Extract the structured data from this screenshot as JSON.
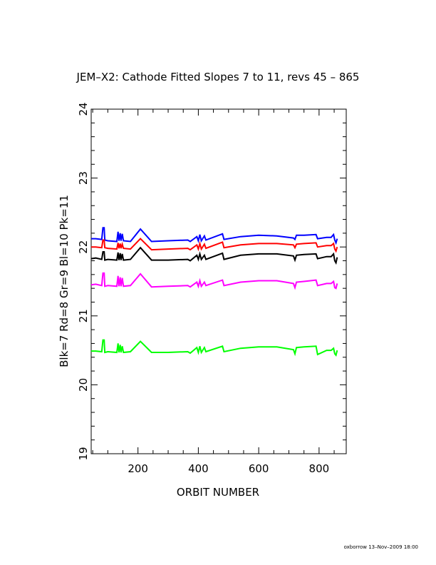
{
  "chart_data": {
    "type": "line",
    "title": "JEM–X2: Cathode Fitted Slopes 7 to 11, revs 45 – 865",
    "xlabel": "ORBIT NUMBER",
    "ylabel": "Blk=7 Rd=8 Gr=9 Bl=10 Pk=11",
    "xlim": [
      45,
      890
    ],
    "ylim": [
      19,
      24
    ],
    "x_ticks": [
      200,
      400,
      600,
      800
    ],
    "x_tick_labels": [
      "200",
      "400",
      "600",
      "800"
    ],
    "y_ticks": [
      19,
      20,
      21,
      22,
      23,
      24
    ],
    "y_tick_labels": [
      "19",
      "20",
      "21",
      "22",
      "23",
      "24"
    ],
    "grid": false,
    "legend": "none",
    "credit": "oxborrow 13–Nov–2009 18:00",
    "series": [
      {
        "color": "#0000ff",
        "points": [
          [
            45,
            22.12
          ],
          [
            60,
            22.12
          ],
          [
            80,
            22.11
          ],
          [
            84,
            22.28
          ],
          [
            88,
            22.28
          ],
          [
            90,
            22.1
          ],
          [
            100,
            22.09
          ],
          [
            130,
            22.08
          ],
          [
            134,
            22.22
          ],
          [
            137,
            22.09
          ],
          [
            141,
            22.2
          ],
          [
            144,
            22.09
          ],
          [
            148,
            22.19
          ],
          [
            152,
            22.09
          ],
          [
            175,
            22.08
          ],
          [
            208,
            22.26
          ],
          [
            245,
            22.08
          ],
          [
            300,
            22.09
          ],
          [
            365,
            22.1
          ],
          [
            373,
            22.08
          ],
          [
            395,
            22.15
          ],
          [
            400,
            22.09
          ],
          [
            405,
            22.18
          ],
          [
            410,
            22.09
          ],
          [
            420,
            22.16
          ],
          [
            425,
            22.1
          ],
          [
            480,
            22.19
          ],
          [
            485,
            22.11
          ],
          [
            540,
            22.15
          ],
          [
            600,
            22.17
          ],
          [
            660,
            22.16
          ],
          [
            715,
            22.13
          ],
          [
            720,
            22.11
          ],
          [
            725,
            22.17
          ],
          [
            750,
            22.17
          ],
          [
            790,
            22.18
          ],
          [
            795,
            22.12
          ],
          [
            825,
            22.14
          ],
          [
            840,
            22.14
          ],
          [
            848,
            22.18
          ],
          [
            852,
            22.1
          ],
          [
            856,
            22.06
          ],
          [
            860,
            22.12
          ]
        ]
      },
      {
        "color": "#ff0000",
        "points": [
          [
            45,
            22.0
          ],
          [
            60,
            22.0
          ],
          [
            80,
            21.99
          ],
          [
            84,
            22.1
          ],
          [
            88,
            22.1
          ],
          [
            90,
            21.99
          ],
          [
            100,
            21.98
          ],
          [
            130,
            21.97
          ],
          [
            134,
            22.06
          ],
          [
            137,
            21.98
          ],
          [
            141,
            22.05
          ],
          [
            144,
            21.98
          ],
          [
            148,
            22.04
          ],
          [
            152,
            21.98
          ],
          [
            175,
            21.97
          ],
          [
            208,
            22.12
          ],
          [
            245,
            21.96
          ],
          [
            300,
            21.97
          ],
          [
            365,
            21.98
          ],
          [
            373,
            21.96
          ],
          [
            395,
            22.03
          ],
          [
            400,
            21.97
          ],
          [
            405,
            22.05
          ],
          [
            410,
            21.97
          ],
          [
            420,
            22.04
          ],
          [
            425,
            21.98
          ],
          [
            480,
            22.07
          ],
          [
            485,
            21.99
          ],
          [
            540,
            22.03
          ],
          [
            600,
            22.05
          ],
          [
            660,
            22.05
          ],
          [
            715,
            22.03
          ],
          [
            720,
            21.99
          ],
          [
            725,
            22.04
          ],
          [
            750,
            22.05
          ],
          [
            790,
            22.06
          ],
          [
            795,
            22.0
          ],
          [
            825,
            22.02
          ],
          [
            840,
            22.02
          ],
          [
            848,
            22.05
          ],
          [
            852,
            21.97
          ],
          [
            856,
            21.94
          ],
          [
            860,
            22.0
          ]
        ]
      },
      {
        "color": "#000000",
        "points": [
          [
            45,
            21.83
          ],
          [
            60,
            21.84
          ],
          [
            80,
            21.82
          ],
          [
            84,
            21.93
          ],
          [
            88,
            21.93
          ],
          [
            90,
            21.81
          ],
          [
            100,
            21.82
          ],
          [
            130,
            21.81
          ],
          [
            134,
            21.92
          ],
          [
            137,
            21.81
          ],
          [
            141,
            21.91
          ],
          [
            144,
            21.81
          ],
          [
            148,
            21.9
          ],
          [
            152,
            21.81
          ],
          [
            175,
            21.82
          ],
          [
            208,
            21.99
          ],
          [
            245,
            21.81
          ],
          [
            300,
            21.81
          ],
          [
            365,
            21.82
          ],
          [
            373,
            21.8
          ],
          [
            395,
            21.88
          ],
          [
            400,
            21.82
          ],
          [
            405,
            21.9
          ],
          [
            410,
            21.82
          ],
          [
            420,
            21.88
          ],
          [
            425,
            21.82
          ],
          [
            480,
            21.91
          ],
          [
            485,
            21.82
          ],
          [
            540,
            21.88
          ],
          [
            600,
            21.9
          ],
          [
            660,
            21.9
          ],
          [
            715,
            21.87
          ],
          [
            720,
            21.81
          ],
          [
            725,
            21.88
          ],
          [
            750,
            21.89
          ],
          [
            790,
            21.9
          ],
          [
            795,
            21.83
          ],
          [
            825,
            21.86
          ],
          [
            840,
            21.86
          ],
          [
            848,
            21.9
          ],
          [
            852,
            21.8
          ],
          [
            856,
            21.77
          ],
          [
            860,
            21.85
          ]
        ]
      },
      {
        "color": "#ff00ff",
        "points": [
          [
            45,
            21.45
          ],
          [
            60,
            21.46
          ],
          [
            80,
            21.44
          ],
          [
            84,
            21.62
          ],
          [
            88,
            21.62
          ],
          [
            90,
            21.43
          ],
          [
            100,
            21.44
          ],
          [
            130,
            21.43
          ],
          [
            134,
            21.58
          ],
          [
            137,
            21.43
          ],
          [
            141,
            21.56
          ],
          [
            144,
            21.43
          ],
          [
            148,
            21.55
          ],
          [
            152,
            21.43
          ],
          [
            175,
            21.44
          ],
          [
            208,
            21.61
          ],
          [
            245,
            21.42
          ],
          [
            300,
            21.43
          ],
          [
            365,
            21.44
          ],
          [
            373,
            21.42
          ],
          [
            395,
            21.49
          ],
          [
            400,
            21.43
          ],
          [
            405,
            21.51
          ],
          [
            410,
            21.43
          ],
          [
            420,
            21.49
          ],
          [
            425,
            21.44
          ],
          [
            480,
            21.52
          ],
          [
            485,
            21.44
          ],
          [
            540,
            21.49
          ],
          [
            600,
            21.51
          ],
          [
            660,
            21.51
          ],
          [
            715,
            21.47
          ],
          [
            720,
            21.41
          ],
          [
            725,
            21.49
          ],
          [
            750,
            21.5
          ],
          [
            790,
            21.52
          ],
          [
            795,
            21.44
          ],
          [
            825,
            21.47
          ],
          [
            840,
            21.47
          ],
          [
            848,
            21.5
          ],
          [
            852,
            21.41
          ],
          [
            856,
            21.4
          ],
          [
            860,
            21.47
          ]
        ]
      },
      {
        "color": "#00ff00",
        "points": [
          [
            45,
            20.49
          ],
          [
            60,
            20.49
          ],
          [
            80,
            20.48
          ],
          [
            84,
            20.65
          ],
          [
            88,
            20.65
          ],
          [
            90,
            20.47
          ],
          [
            100,
            20.48
          ],
          [
            130,
            20.47
          ],
          [
            134,
            20.6
          ],
          [
            137,
            20.47
          ],
          [
            141,
            20.58
          ],
          [
            144,
            20.47
          ],
          [
            148,
            20.56
          ],
          [
            152,
            20.47
          ],
          [
            175,
            20.48
          ],
          [
            208,
            20.63
          ],
          [
            245,
            20.47
          ],
          [
            300,
            20.47
          ],
          [
            365,
            20.48
          ],
          [
            373,
            20.46
          ],
          [
            395,
            20.54
          ],
          [
            400,
            20.47
          ],
          [
            405,
            20.56
          ],
          [
            410,
            20.47
          ],
          [
            420,
            20.54
          ],
          [
            425,
            20.48
          ],
          [
            480,
            20.56
          ],
          [
            485,
            20.48
          ],
          [
            540,
            20.53
          ],
          [
            600,
            20.55
          ],
          [
            660,
            20.55
          ],
          [
            715,
            20.51
          ],
          [
            720,
            20.45
          ],
          [
            725,
            20.54
          ],
          [
            750,
            20.55
          ],
          [
            790,
            20.56
          ],
          [
            795,
            20.44
          ],
          [
            825,
            20.5
          ],
          [
            840,
            20.5
          ],
          [
            848,
            20.53
          ],
          [
            852,
            20.45
          ],
          [
            856,
            20.43
          ],
          [
            860,
            20.5
          ]
        ]
      }
    ]
  }
}
